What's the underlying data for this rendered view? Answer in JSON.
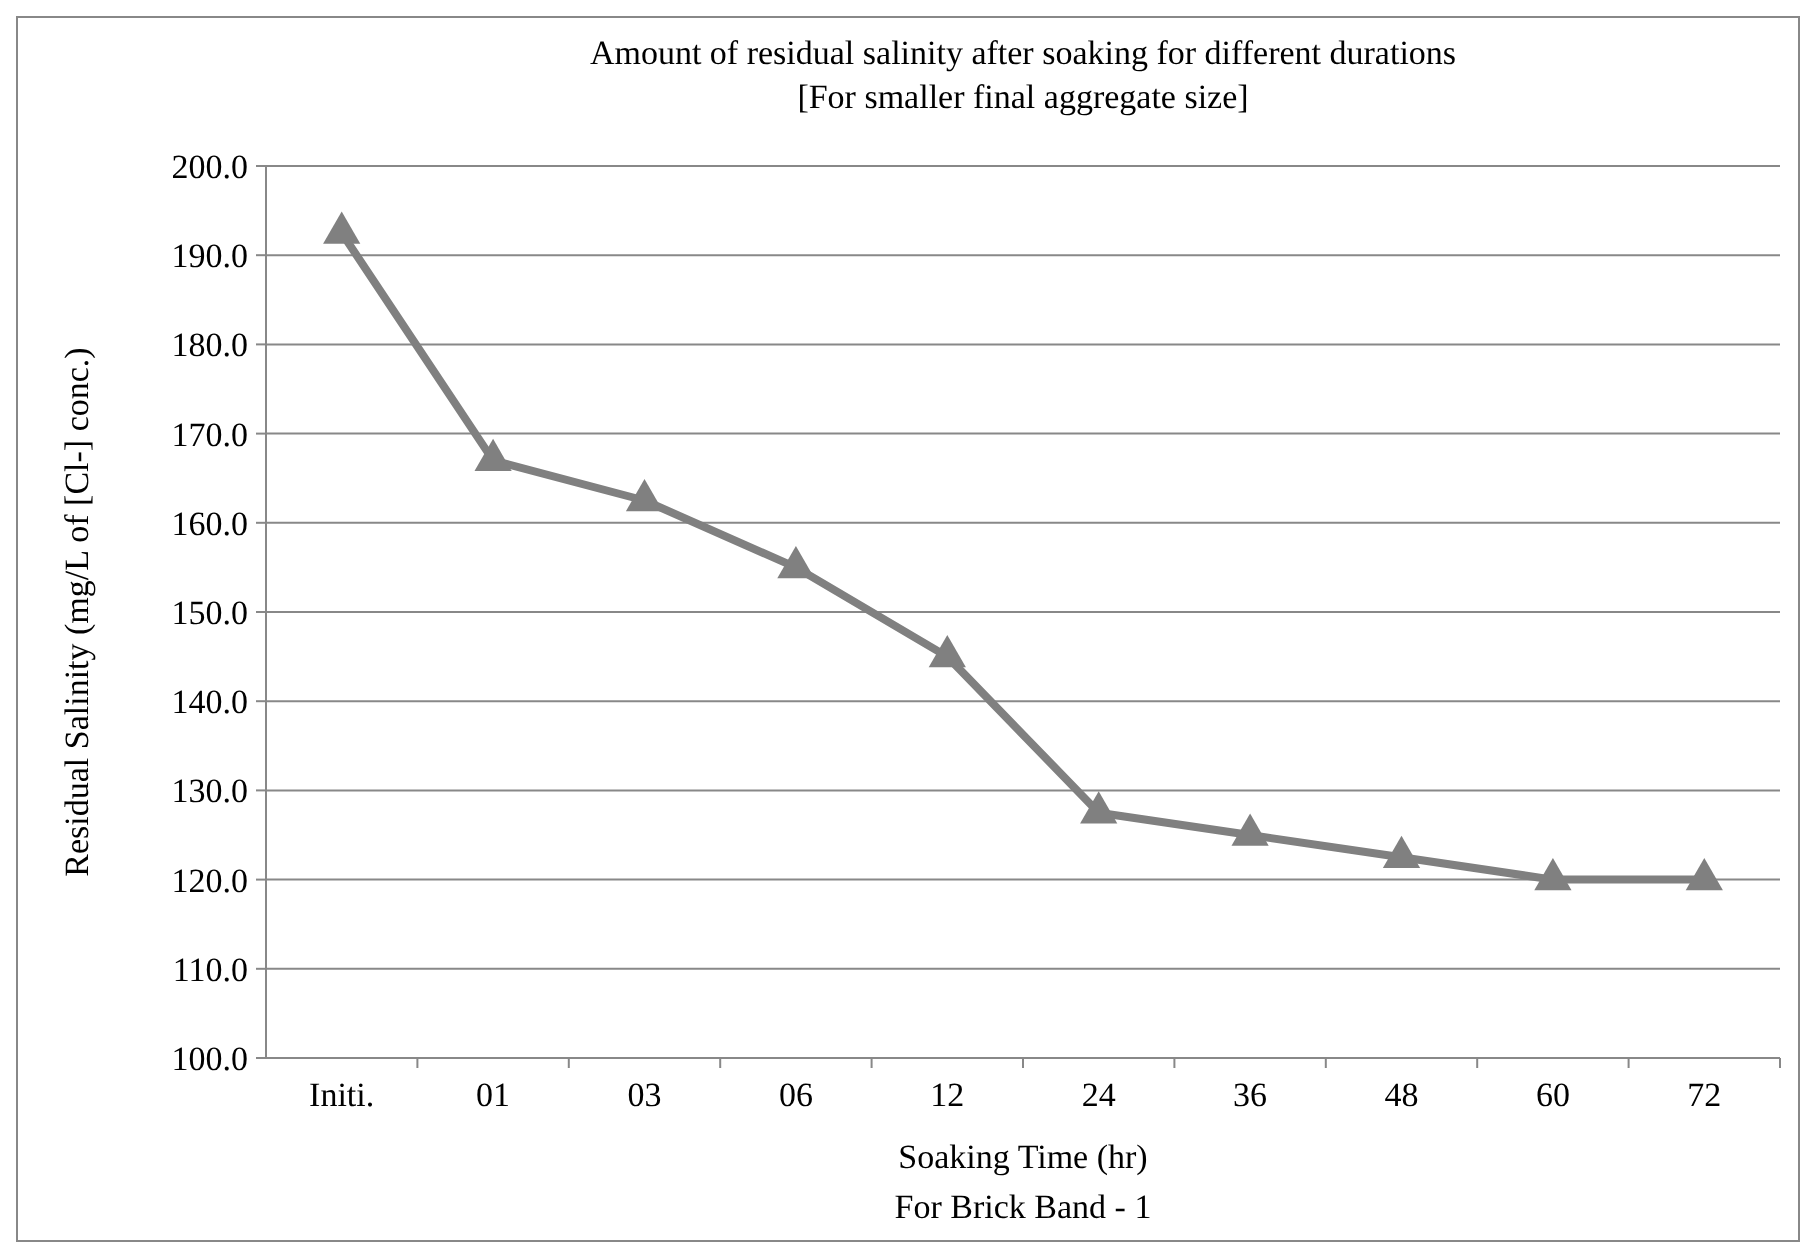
{
  "chart_data": {
    "type": "line",
    "title": "Amount of residual salinity after soaking for different durations",
    "subtitle": "[For smaller final aggregate size]",
    "xlabel": "Soaking Time (hr)",
    "ylabel": "Residual Salinity (mg/L of [Cl-] conc.)",
    "annotations": [
      "For Brick Band - 1"
    ],
    "categories": [
      "Initi.",
      "01",
      "03",
      "06",
      "12",
      "24",
      "36",
      "48",
      "60",
      "72"
    ],
    "series": [
      {
        "color": "#808080",
        "values": [
          192.5,
          167,
          162.5,
          155,
          145,
          127.5,
          125,
          122.5,
          120,
          120
        ]
      }
    ],
    "ylim": [
      100,
      200
    ],
    "yticks": [
      {
        "value": 100,
        "label": "100.0"
      },
      {
        "value": 110,
        "label": "110.0"
      },
      {
        "value": 120,
        "label": "120.0"
      },
      {
        "value": 130,
        "label": "130.0"
      },
      {
        "value": 140,
        "label": "140.0"
      },
      {
        "value": 150,
        "label": "150.0"
      },
      {
        "value": 160,
        "label": "160.0"
      },
      {
        "value": 170,
        "label": "170.0"
      },
      {
        "value": 180,
        "label": "180.0"
      },
      {
        "value": 190,
        "label": "190.0"
      },
      {
        "value": 200,
        "label": "200.0"
      }
    ],
    "grid": "y",
    "marker": "triangle",
    "line_style": "solid"
  }
}
